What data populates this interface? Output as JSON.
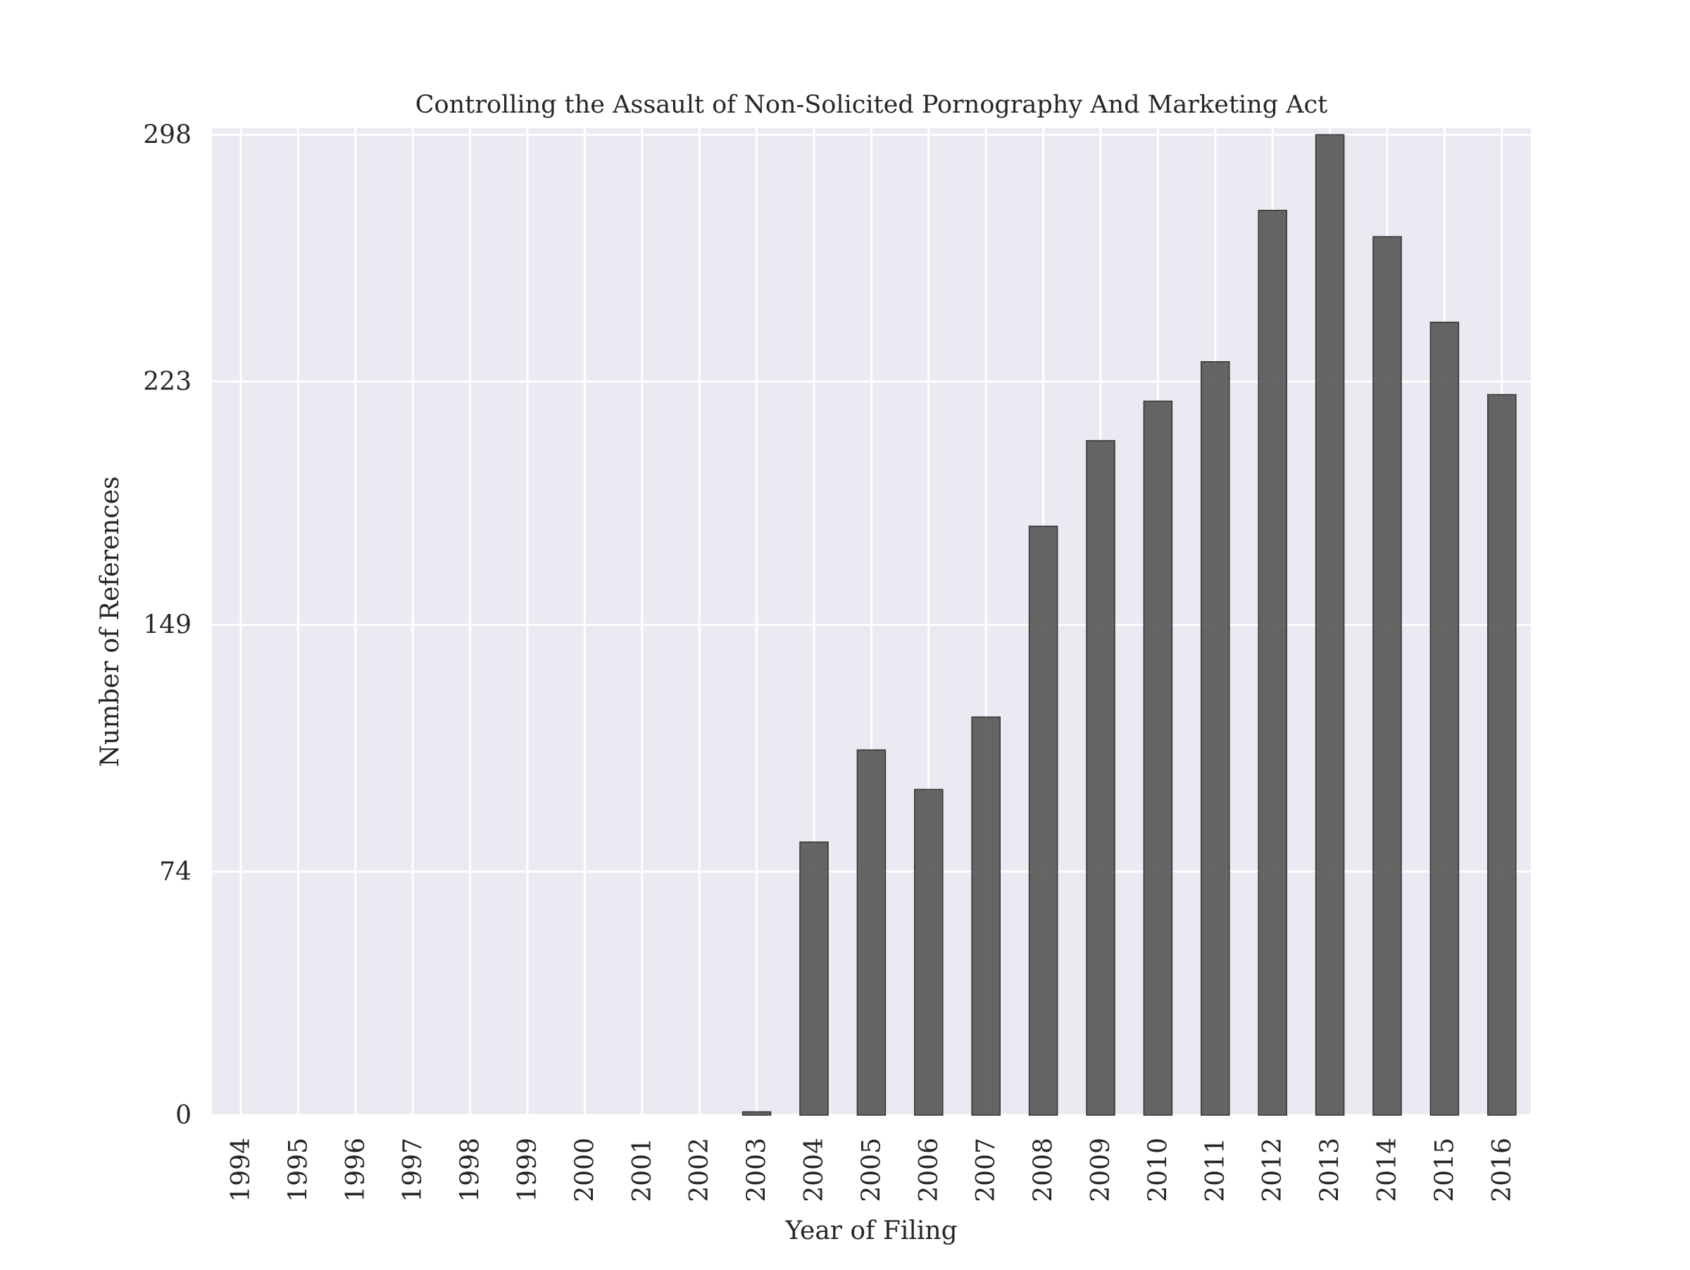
{
  "chart_data": {
    "type": "bar",
    "title": "Controlling the Assault of Non-Solicited Pornography And Marketing Act",
    "xlabel": "Year of Filing",
    "ylabel": "Number of References",
    "categories": [
      "1994",
      "1995",
      "1996",
      "1997",
      "1998",
      "1999",
      "2000",
      "2001",
      "2002",
      "2003",
      "2004",
      "2005",
      "2006",
      "2007",
      "2008",
      "2009",
      "2010",
      "2011",
      "2012",
      "2013",
      "2014",
      "2015",
      "2016"
    ],
    "values": [
      0,
      0,
      0,
      0,
      0,
      0,
      0,
      0,
      0,
      1,
      83,
      111,
      99,
      121,
      179,
      205,
      217,
      229,
      275,
      298,
      267,
      241,
      219
    ],
    "yticks": [
      0,
      74,
      149,
      223,
      298
    ],
    "ylim": [
      0,
      300
    ],
    "grid": true,
    "colors": {
      "plot_bg": "#eaeaf2",
      "grid": "#ffffff",
      "bar_fill": "#555555",
      "bar_edge": "#333333"
    }
  }
}
